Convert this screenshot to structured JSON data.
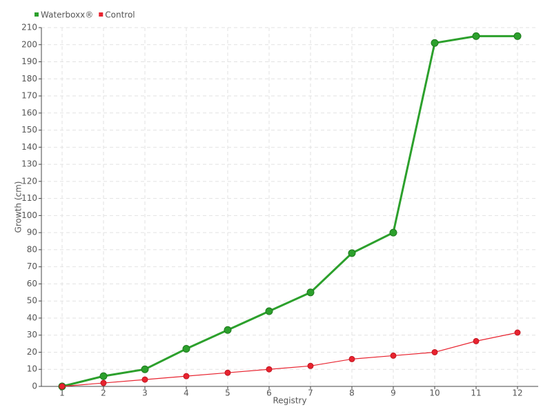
{
  "chart_data": {
    "type": "line",
    "x_label": "Registry",
    "y_label": "Growth (cm)",
    "categories": [
      "1",
      "2",
      "3",
      "4",
      "5",
      "6",
      "7",
      "8",
      "9",
      "10",
      "11",
      "12"
    ],
    "series": [
      {
        "name": "Waterboxx®",
        "color": "#2ca02c",
        "values": [
          0,
          6,
          10,
          22,
          33,
          44,
          55,
          78,
          90,
          201,
          205,
          205
        ]
      },
      {
        "name": "Control",
        "color": "#e8232f",
        "values": [
          0,
          2,
          4,
          6,
          8,
          10,
          12,
          16,
          18,
          20,
          26.5,
          31.5
        ]
      }
    ],
    "ylim": [
      0,
      210
    ],
    "yticks": [
      0,
      10,
      20,
      30,
      40,
      50,
      60,
      70,
      80,
      90,
      100,
      110,
      120,
      130,
      140,
      150,
      160,
      170,
      180,
      190,
      200,
      210
    ],
    "grid": true,
    "legend": "top-left"
  }
}
